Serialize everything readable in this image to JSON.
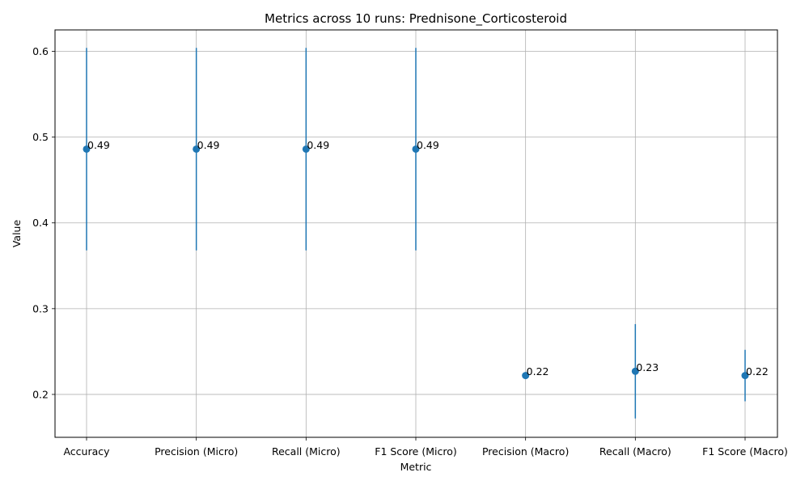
{
  "chart_data": {
    "type": "scatter",
    "title": "Metrics across 10 runs: Prednisone_Corticosteroid",
    "xlabel": "Metric",
    "ylabel": "Value",
    "categories": [
      "Accuracy",
      "Precision (Micro)",
      "Recall (Micro)",
      "F1 Score (Micro)",
      "Precision (Macro)",
      "Recall (Macro)",
      "F1 Score (Macro)"
    ],
    "values": [
      0.486,
      0.486,
      0.486,
      0.486,
      0.222,
      0.227,
      0.222
    ],
    "error": [
      0.118,
      0.118,
      0.118,
      0.118,
      0.004,
      0.055,
      0.03
    ],
    "point_labels": [
      "0.49",
      "0.49",
      "0.49",
      "0.49",
      "0.22",
      "0.23",
      "0.22"
    ],
    "ylim": [
      0.15,
      0.625
    ],
    "yticks": [
      0.2,
      0.3,
      0.4,
      0.5,
      0.6
    ],
    "ytick_labels": [
      "0.2",
      "0.3",
      "0.4",
      "0.5",
      "0.6"
    ],
    "grid": true,
    "color": "#1f77b4"
  }
}
